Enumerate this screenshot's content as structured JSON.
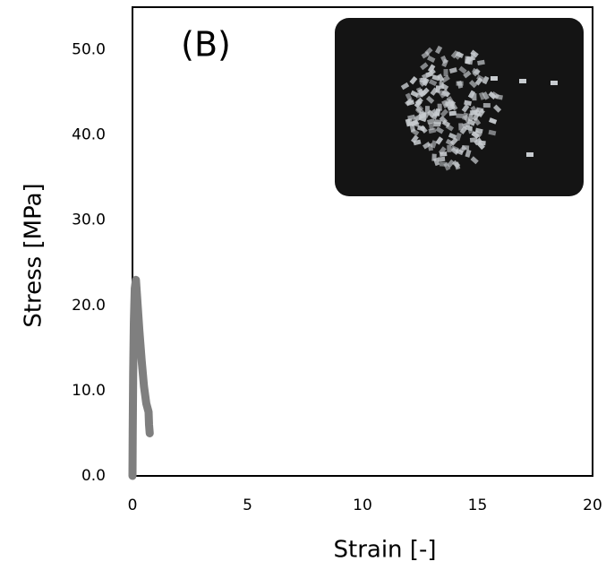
{
  "chart_data": {
    "type": "line",
    "annotation": "(B)",
    "xlabel": "Strain [-]",
    "ylabel": "Stress [MPa]",
    "x": [
      0,
      0.01,
      0.03,
      0.06,
      0.1,
      0.15,
      0.2,
      0.3,
      0.4,
      0.5,
      0.6,
      0.7,
      0.72,
      0.75
    ],
    "values": [
      0,
      5,
      12,
      18,
      22,
      23,
      21,
      17,
      13.5,
      10.5,
      8.5,
      7.5,
      6,
      5
    ],
    "color": "#7f7f7f",
    "xlim": [
      0,
      20
    ],
    "xticks": [
      0,
      5,
      10,
      15,
      20
    ],
    "ylim": [
      0,
      55
    ],
    "yticks": [
      {
        "value": 0,
        "label": "0.0"
      },
      {
        "value": 10,
        "label": "10.0"
      },
      {
        "value": 20,
        "label": "20.0"
      },
      {
        "value": 30,
        "label": "30.0"
      },
      {
        "value": 40,
        "label": "40.0"
      },
      {
        "value": 50,
        "label": "50.0"
      }
    ],
    "grid": false
  }
}
